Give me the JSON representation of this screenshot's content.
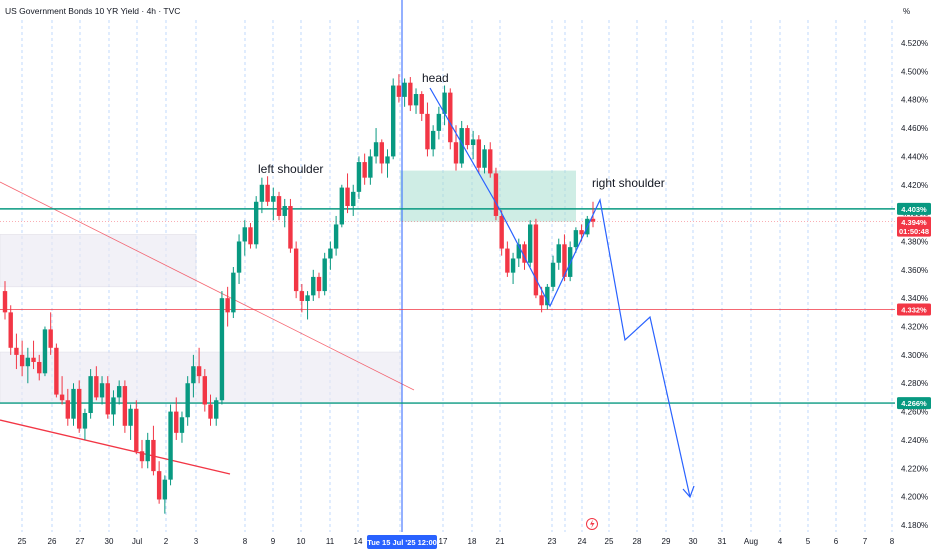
{
  "chart_data": {
    "type": "candlestick",
    "title": "US Government Bonds 10 YR Yield · 4h · TVC",
    "y_unit": "%",
    "ylim": [
      4.175,
      4.535
    ],
    "y_ticks": [
      "4.180%",
      "4.200%",
      "4.220%",
      "4.240%",
      "4.260%",
      "4.280%",
      "4.300%",
      "4.320%",
      "4.340%",
      "4.360%",
      "4.380%",
      "4.400%",
      "4.420%",
      "4.440%",
      "4.460%",
      "4.480%",
      "4.500%",
      "4.520%"
    ],
    "x_ticks": [
      "25",
      "26",
      "27",
      "30",
      "Jul",
      "2",
      "3",
      "8",
      "9",
      "10",
      "11",
      "14",
      "15",
      "17",
      "18",
      "21",
      "23",
      "24",
      "25",
      "28",
      "29",
      "30",
      "31",
      "Aug",
      "4",
      "5",
      "6",
      "7",
      "8"
    ],
    "crosshair_x_label": "Tue 15 Jul '25   12:00",
    "levels": [
      {
        "value": 4.403,
        "label": "4.403%",
        "color": "#089981"
      },
      {
        "value": 4.332,
        "label": "4.332%",
        "color": "#f23645"
      },
      {
        "value": 4.266,
        "label": "4.266%",
        "color": "#089981"
      }
    ],
    "current_price": {
      "value": 4.394,
      "label": "4.394%",
      "countdown": "01:50:48",
      "color": "#f23645"
    },
    "annotations": {
      "left_shoulder": "left shoulder",
      "head": "head",
      "right_shoulder": "right shoulder"
    },
    "series": [
      {
        "name": "candles",
        "candles": [
          [
            4.345,
            4.352,
            4.325,
            4.33
          ],
          [
            4.33,
            4.335,
            4.3,
            4.305
          ],
          [
            4.305,
            4.315,
            4.29,
            4.3
          ],
          [
            4.3,
            4.31,
            4.285,
            4.292
          ],
          [
            4.292,
            4.305,
            4.28,
            4.298
          ],
          [
            4.298,
            4.31,
            4.29,
            4.295
          ],
          [
            4.295,
            4.3,
            4.282,
            4.287
          ],
          [
            4.287,
            4.32,
            4.285,
            4.318
          ],
          [
            4.318,
            4.33,
            4.3,
            4.305
          ],
          [
            4.305,
            4.308,
            4.27,
            4.272
          ],
          [
            4.272,
            4.285,
            4.265,
            4.268
          ],
          [
            4.268,
            4.276,
            4.25,
            4.255
          ],
          [
            4.255,
            4.28,
            4.25,
            4.276
          ],
          [
            4.276,
            4.282,
            4.245,
            4.248
          ],
          [
            4.248,
            4.262,
            4.24,
            4.259
          ],
          [
            4.259,
            4.29,
            4.255,
            4.285
          ],
          [
            4.285,
            4.292,
            4.268,
            4.27
          ],
          [
            4.27,
            4.285,
            4.265,
            4.28
          ],
          [
            4.28,
            4.285,
            4.255,
            4.258
          ],
          [
            4.258,
            4.275,
            4.25,
            4.27
          ],
          [
            4.27,
            4.282,
            4.265,
            4.278
          ],
          [
            4.278,
            4.282,
            4.245,
            4.25
          ],
          [
            4.25,
            4.265,
            4.24,
            4.262
          ],
          [
            4.262,
            4.268,
            4.23,
            4.232
          ],
          [
            4.232,
            4.24,
            4.22,
            4.225
          ],
          [
            4.225,
            4.245,
            4.22,
            4.24
          ],
          [
            4.24,
            4.25,
            4.215,
            4.218
          ],
          [
            4.218,
            4.225,
            4.195,
            4.198
          ],
          [
            4.198,
            4.215,
            4.188,
            4.212
          ],
          [
            4.212,
            4.265,
            4.208,
            4.26
          ],
          [
            4.26,
            4.27,
            4.24,
            4.245
          ],
          [
            4.245,
            4.26,
            4.238,
            4.256
          ],
          [
            4.256,
            4.285,
            4.25,
            4.28
          ],
          [
            4.28,
            4.3,
            4.27,
            4.292
          ],
          [
            4.292,
            4.305,
            4.28,
            4.285
          ],
          [
            4.285,
            4.29,
            4.26,
            4.265
          ],
          [
            4.265,
            4.272,
            4.25,
            4.255
          ],
          [
            4.255,
            4.27,
            4.25,
            4.268
          ],
          [
            4.268,
            4.345,
            4.265,
            4.34
          ],
          [
            4.34,
            4.348,
            4.32,
            4.33
          ],
          [
            4.33,
            4.362,
            4.326,
            4.358
          ],
          [
            4.358,
            4.385,
            4.35,
            4.38
          ],
          [
            4.38,
            4.395,
            4.37,
            4.39
          ],
          [
            4.39,
            4.393,
            4.375,
            4.378
          ],
          [
            4.378,
            4.412,
            4.375,
            4.408
          ],
          [
            4.408,
            4.425,
            4.4,
            4.42
          ],
          [
            4.42,
            4.426,
            4.405,
            4.408
          ],
          [
            4.408,
            4.418,
            4.395,
            4.412
          ],
          [
            4.412,
            4.415,
            4.395,
            4.398
          ],
          [
            4.398,
            4.41,
            4.39,
            4.405
          ],
          [
            4.405,
            4.41,
            4.372,
            4.375
          ],
          [
            4.375,
            4.38,
            4.34,
            4.345
          ],
          [
            4.345,
            4.35,
            4.33,
            4.338
          ],
          [
            4.338,
            4.345,
            4.325,
            4.342
          ],
          [
            4.342,
            4.36,
            4.338,
            4.355
          ],
          [
            4.355,
            4.358,
            4.34,
            4.345
          ],
          [
            4.345,
            4.372,
            4.342,
            4.368
          ],
          [
            4.368,
            4.38,
            4.36,
            4.375
          ],
          [
            4.375,
            4.398,
            4.37,
            4.392
          ],
          [
            4.392,
            4.42,
            4.39,
            4.418
          ],
          [
            4.418,
            4.428,
            4.4,
            4.405
          ],
          [
            4.405,
            4.42,
            4.398,
            4.415
          ],
          [
            4.415,
            4.44,
            4.41,
            4.436
          ],
          [
            4.436,
            4.442,
            4.42,
            4.425
          ],
          [
            4.425,
            4.445,
            4.42,
            4.44
          ],
          [
            4.44,
            4.46,
            4.435,
            4.45
          ],
          [
            4.45,
            4.452,
            4.428,
            4.435
          ],
          [
            4.435,
            4.445,
            4.425,
            4.44
          ],
          [
            4.44,
            4.495,
            4.438,
            4.49
          ],
          [
            4.49,
            4.498,
            4.478,
            4.482
          ],
          [
            4.482,
            4.495,
            4.475,
            4.492
          ],
          [
            4.492,
            4.496,
            4.472,
            4.476
          ],
          [
            4.476,
            4.488,
            4.47,
            4.484
          ],
          [
            4.484,
            4.486,
            4.465,
            4.47
          ],
          [
            4.47,
            4.478,
            4.44,
            4.445
          ],
          [
            4.445,
            4.462,
            4.44,
            4.458
          ],
          [
            4.458,
            4.475,
            4.452,
            4.47
          ],
          [
            4.47,
            4.49,
            4.462,
            4.485
          ],
          [
            4.485,
            4.488,
            4.445,
            4.45
          ],
          [
            4.45,
            4.462,
            4.43,
            4.435
          ],
          [
            4.435,
            4.465,
            4.432,
            4.46
          ],
          [
            4.46,
            4.462,
            4.445,
            4.448
          ],
          [
            4.448,
            4.458,
            4.438,
            4.452
          ],
          [
            4.452,
            4.455,
            4.428,
            4.432
          ],
          [
            4.432,
            4.448,
            4.428,
            4.445
          ],
          [
            4.445,
            4.45,
            4.425,
            4.428
          ],
          [
            4.428,
            4.432,
            4.395,
            4.398
          ],
          [
            4.398,
            4.402,
            4.37,
            4.375
          ],
          [
            4.375,
            4.38,
            4.355,
            4.358
          ],
          [
            4.358,
            4.372,
            4.35,
            4.368
          ],
          [
            4.368,
            4.382,
            4.362,
            4.378
          ],
          [
            4.378,
            4.38,
            4.36,
            4.365
          ],
          [
            4.365,
            4.395,
            4.362,
            4.392
          ],
          [
            4.392,
            4.396,
            4.34,
            4.342
          ],
          [
            4.342,
            4.348,
            4.33,
            4.335
          ],
          [
            4.335,
            4.35,
            4.332,
            4.348
          ],
          [
            4.348,
            4.37,
            4.345,
            4.365
          ],
          [
            4.365,
            4.382,
            4.36,
            4.378
          ],
          [
            4.378,
            4.385,
            4.352,
            4.355
          ],
          [
            4.355,
            4.38,
            4.352,
            4.376
          ],
          [
            4.376,
            4.39,
            4.372,
            4.388
          ],
          [
            4.388,
            4.392,
            4.38,
            4.385
          ],
          [
            4.385,
            4.398,
            4.383,
            4.396
          ],
          [
            4.396,
            4.408,
            4.39,
            4.394
          ]
        ]
      }
    ]
  }
}
